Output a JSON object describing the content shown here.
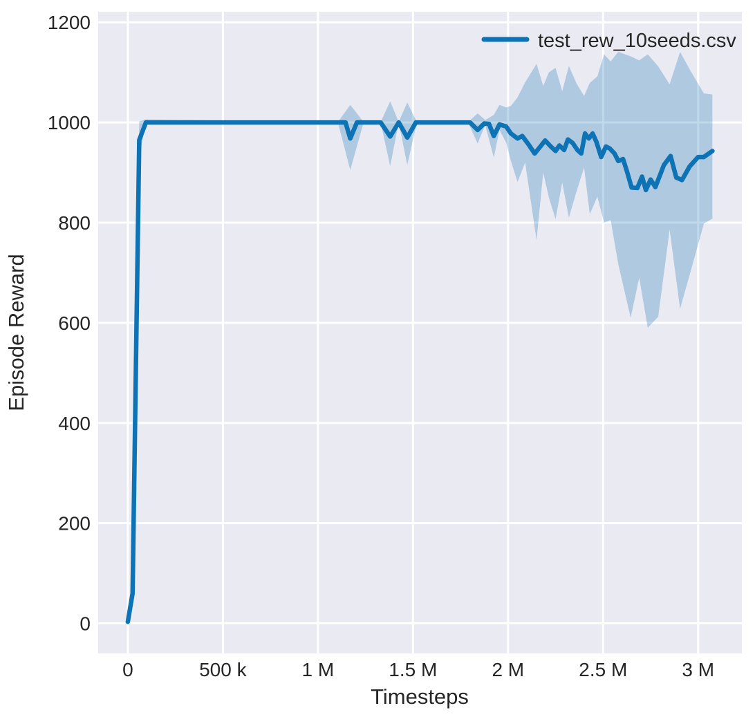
{
  "chart_data": {
    "type": "line",
    "title": "",
    "xlabel": "Timesteps",
    "ylabel": "Episode Reward",
    "grid": true,
    "legend_position": "upper right",
    "plot_background": "#eaeaf2",
    "grid_color": "#ffffff",
    "text_color": "#262626",
    "xlim": [
      -156000,
      3230000
    ],
    "ylim": [
      -60,
      1221
    ],
    "xticks": {
      "values": [
        0,
        500000,
        1000000,
        1500000,
        2000000,
        2500000,
        3000000
      ],
      "labels": [
        "0",
        "500 k",
        "1 M",
        "1.5 M",
        "2 M",
        "2.5 M",
        "3 M"
      ]
    },
    "yticks": {
      "values": [
        0,
        200,
        400,
        600,
        800,
        1000,
        1200
      ],
      "labels": [
        "0",
        "200",
        "400",
        "600",
        "800",
        "1000",
        "1200"
      ]
    },
    "series": [
      {
        "name": "test_rew_10seeds.csv",
        "color": "#0d73b4",
        "x": [
          0,
          25000,
          60000,
          95000,
          1100000,
          1145000,
          1170000,
          1205000,
          1330000,
          1380000,
          1425000,
          1470000,
          1515000,
          1800000,
          1840000,
          1875000,
          1900000,
          1925000,
          1955000,
          1990000,
          2015000,
          2050000,
          2075000,
          2110000,
          2140000,
          2170000,
          2195000,
          2225000,
          2250000,
          2270000,
          2295000,
          2315000,
          2340000,
          2365000,
          2385000,
          2405000,
          2425000,
          2445000,
          2465000,
          2490000,
          2515000,
          2535000,
          2560000,
          2580000,
          2605000,
          2625000,
          2650000,
          2680000,
          2705000,
          2725000,
          2750000,
          2775000,
          2820000,
          2855000,
          2885000,
          2915000,
          2955000,
          3000000,
          3030000,
          3075000
        ],
        "y": [
          3,
          60,
          965,
          1000,
          1000,
          1000,
          968,
          1000,
          1000,
          972,
          1000,
          970,
          1000,
          1000,
          985,
          998,
          997,
          973,
          996,
          992,
          978,
          968,
          973,
          955,
          938,
          952,
          964,
          952,
          943,
          954,
          945,
          966,
          959,
          945,
          938,
          978,
          968,
          978,
          961,
          931,
          952,
          948,
          938,
          923,
          927,
          903,
          870,
          869,
          892,
          865,
          886,
          871,
          915,
          933,
          890,
          885,
          912,
          931,
          931,
          943
        ]
      }
    ],
    "band": {
      "series": "test_rew_10seeds.csv",
      "fill_color": "#1273b4",
      "fill_opacity": 0.27,
      "x": [
        0,
        25000,
        60000,
        95000,
        1105000,
        1170000,
        1240000,
        1330000,
        1380000,
        1425000,
        1470000,
        1520000,
        1790000,
        1840000,
        1880000,
        1925000,
        1955000,
        1990000,
        2015000,
        2050000,
        2090000,
        2150000,
        2185000,
        2215000,
        2250000,
        2285000,
        2320000,
        2360000,
        2400000,
        2430000,
        2470000,
        2505000,
        2540000,
        2580000,
        2645000,
        2690000,
        2735000,
        2790000,
        2850000,
        2905000,
        2960000,
        3030000,
        3075000
      ],
      "lower": [
        3,
        55,
        930,
        1000,
        1000,
        905,
        1000,
        1000,
        913,
        1000,
        915,
        1000,
        1000,
        958,
        995,
        930,
        985,
        960,
        923,
        881,
        920,
        765,
        900,
        850,
        807,
        880,
        810,
        862,
        910,
        817,
        852,
        800,
        805,
        717,
        610,
        690,
        590,
        612,
        786,
        628,
        702,
        798,
        808
      ],
      "upper": [
        3,
        68,
        1002,
        1006,
        1001,
        1035,
        1001,
        1001,
        1042,
        1001,
        1040,
        1001,
        1001,
        1018,
        1005,
        1015,
        1035,
        1030,
        1033,
        1050,
        1080,
        1117,
        1073,
        1100,
        1109,
        1062,
        1113,
        1078,
        1053,
        1079,
        1092,
        1136,
        1122,
        1141,
        1132,
        1124,
        1136,
        1112,
        1076,
        1141,
        1103,
        1058,
        1056
      ]
    }
  },
  "legend": {
    "entry_label": "test_rew_10seeds.csv"
  }
}
